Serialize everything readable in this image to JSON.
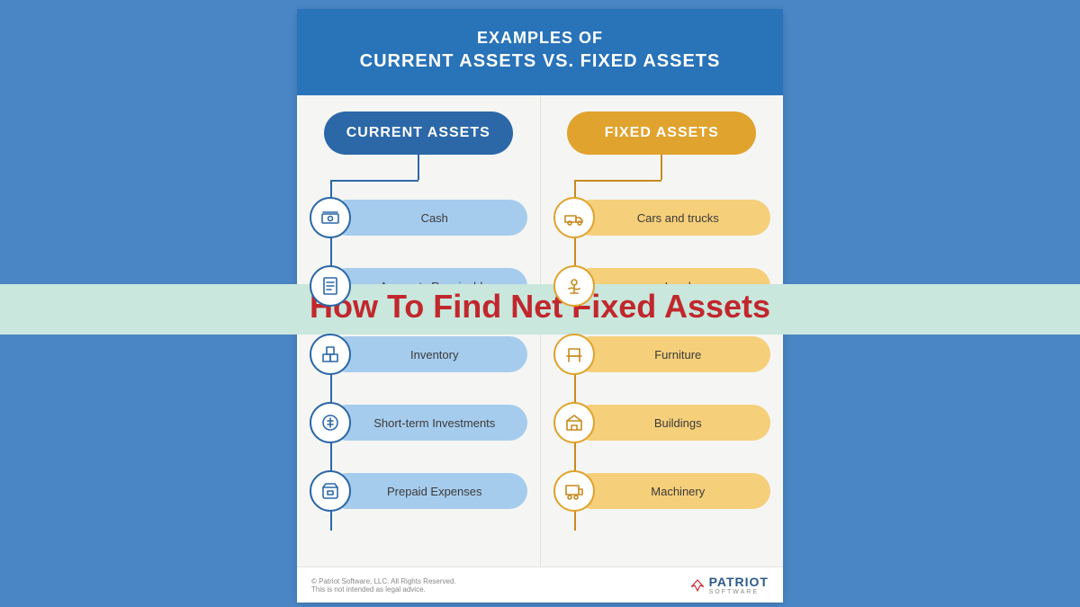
{
  "background_color": "#4a86c5",
  "card": {
    "header_bg": "#2973b8",
    "title_line1": "EXAMPLES OF",
    "title_line2": "CURRENT ASSETS VS. FIXED ASSETS"
  },
  "overlay": {
    "band_color": "#c9e7dc",
    "text": "How To Find Net Fixed Assets",
    "text_color": "#c1272d"
  },
  "columns": {
    "current": {
      "label": "CURRENT ASSETS",
      "pill_color": "#2c68a8",
      "connector_color": "#2c68a8",
      "bar_color": "#a6cced",
      "icon_border": "#2c68a8",
      "icon_stroke": "#2c68a8",
      "items": [
        {
          "label": "Cash",
          "icon": "cash"
        },
        {
          "label": "Accounts Receivable",
          "icon": "receivable"
        },
        {
          "label": "Inventory",
          "icon": "inventory"
        },
        {
          "label": "Short-term Investments",
          "icon": "investments"
        },
        {
          "label": "Prepaid Expenses",
          "icon": "prepaid"
        }
      ]
    },
    "fixed": {
      "label": "FIXED ASSETS",
      "pill_color": "#e0a32e",
      "connector_color": "#c78a1f",
      "bar_color": "#f5cf7a",
      "icon_border": "#e0a32e",
      "icon_stroke": "#c78a1f",
      "items": [
        {
          "label": "Cars and trucks",
          "icon": "truck"
        },
        {
          "label": "Land",
          "icon": "land"
        },
        {
          "label": "Furniture",
          "icon": "furniture"
        },
        {
          "label": "Buildings",
          "icon": "buildings"
        },
        {
          "label": "Machinery",
          "icon": "machinery"
        }
      ]
    }
  },
  "footer": {
    "copyright": "© Patriot Software, LLC. All Rights Reserved.",
    "disclaimer": "This is not intended as legal advice.",
    "brand": "PATRIOT",
    "brand_sub": "SOFTWARE"
  }
}
